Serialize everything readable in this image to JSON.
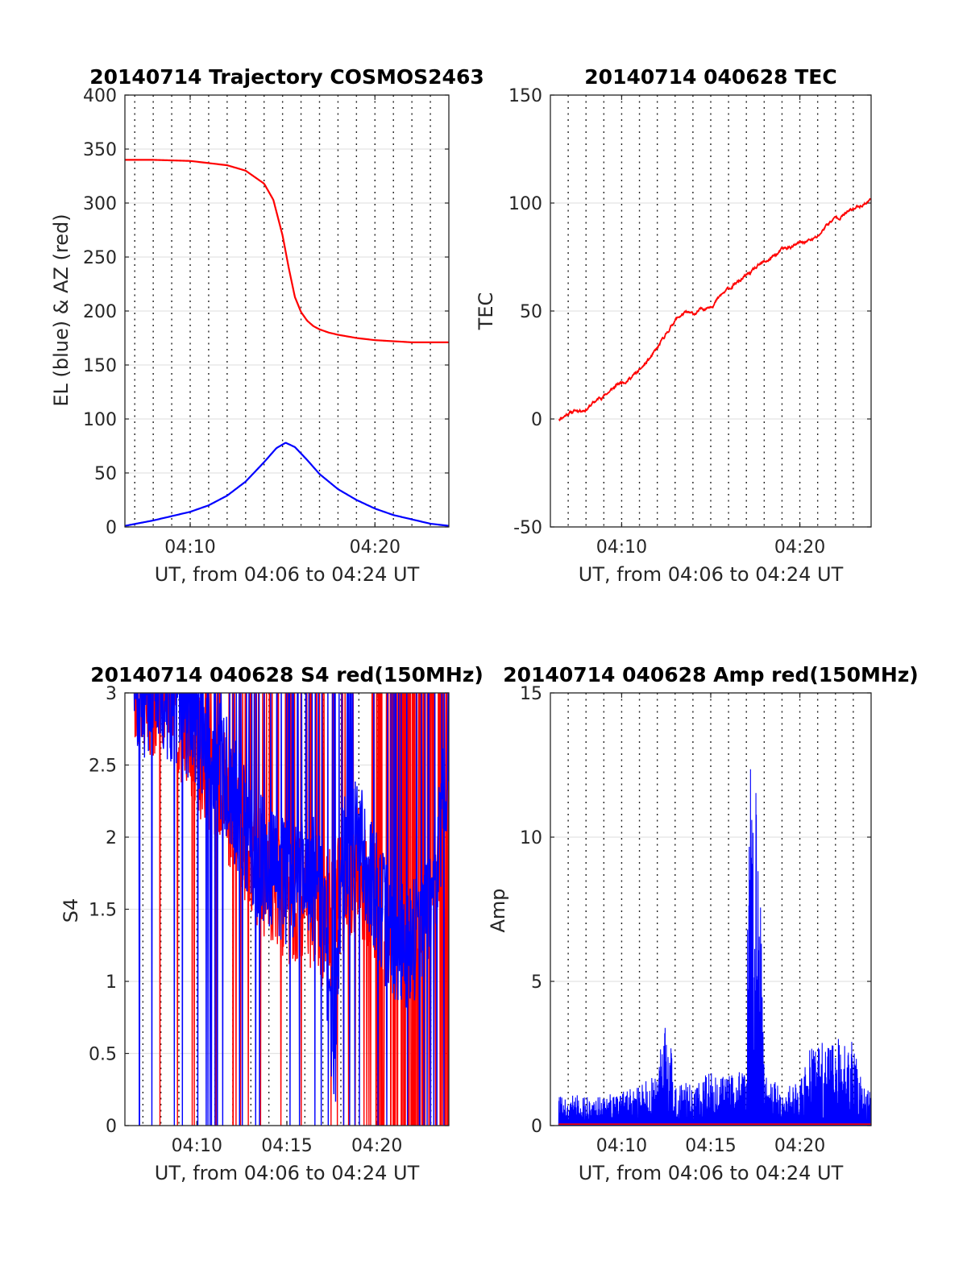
{
  "chart_data": [
    {
      "type": "line",
      "title": "20140714 Trajectory COSMOS2463",
      "xlabel": "UT, from 04:06 to 04:24 UT",
      "ylabel": "EL (blue) & AZ (red)",
      "xlim": [
        "04:06:28",
        "04:24:00"
      ],
      "ylim": [
        0,
        400
      ],
      "xticks": [
        "04:10",
        "04:20"
      ],
      "yticks": [
        "0",
        "50",
        "100",
        "150",
        "200",
        "250",
        "300",
        "350",
        "400"
      ],
      "grid": true,
      "series": [
        {
          "color": "#ff0000",
          "x": [
            "04:06:28",
            "04:08:00",
            "04:10:00",
            "04:12:00",
            "04:13:00",
            "04:14:00",
            "04:14:30",
            "04:15:00",
            "04:15:20",
            "04:15:40",
            "04:16:00",
            "04:16:20",
            "04:16:40",
            "04:17:00",
            "04:17:30",
            "04:18:00",
            "04:19:00",
            "04:20:00",
            "04:21:00",
            "04:22:00",
            "04:23:00",
            "04:24:00"
          ],
          "y": [
            340,
            340,
            339,
            335,
            330,
            318,
            303,
            270,
            240,
            213,
            199,
            191,
            186,
            183,
            180,
            178,
            175,
            173,
            172,
            171,
            171,
            171
          ]
        },
        {
          "color": "#0000ff",
          "x": [
            "04:06:28",
            "04:08:00",
            "04:10:00",
            "04:11:00",
            "04:12:00",
            "04:13:00",
            "04:14:00",
            "04:14:40",
            "04:15:10",
            "04:15:40",
            "04:16:20",
            "04:17:00",
            "04:18:00",
            "04:19:00",
            "04:20:00",
            "04:21:00",
            "04:22:00",
            "04:23:00",
            "04:24:00"
          ],
          "y": [
            1,
            6,
            14,
            20,
            29,
            42,
            60,
            73,
            78,
            74,
            62,
            49,
            35,
            25,
            17,
            11,
            7,
            3,
            1
          ]
        }
      ]
    },
    {
      "type": "line",
      "title": "20140714 040628 TEC",
      "xlabel": "UT, from 04:06 to 04:24 UT",
      "ylabel": "TEC",
      "xlim": [
        "04:06:00",
        "04:24:00"
      ],
      "ylim": [
        -50,
        150
      ],
      "xticks": [
        "04:10",
        "04:20"
      ],
      "yticks": [
        "-50",
        "0",
        "50",
        "100",
        "150"
      ],
      "grid": true,
      "series": [
        {
          "color": "#ff0000",
          "x": [
            "04:06:28",
            "04:07:00",
            "04:08:00",
            "04:09:00",
            "04:10:00",
            "04:11:00",
            "04:12:00",
            "04:12:30",
            "04:13:00",
            "04:13:30",
            "04:14:00",
            "04:15:00",
            "04:16:00",
            "04:17:00",
            "04:18:00",
            "04:19:00",
            "04:20:00",
            "04:21:00",
            "04:21:30",
            "04:22:00",
            "04:23:00",
            "04:24:00"
          ],
          "y": [
            0,
            3,
            5,
            11,
            17,
            22,
            32,
            39,
            46,
            49,
            48,
            53,
            60,
            66,
            72,
            78,
            81,
            84,
            90,
            93,
            97,
            102
          ]
        }
      ]
    },
    {
      "type": "line",
      "title": "20140714 040628 S4 red(150MHz)",
      "xlabel": "UT, from 04:06 to 04:24 UT",
      "ylabel": "S4",
      "xlim": [
        "04:06:00",
        "04:24:00"
      ],
      "ylim": [
        0,
        3
      ],
      "xticks": [
        "04:10",
        "04:15",
        "04:20"
      ],
      "yticks": [
        "0",
        "0.5",
        "1",
        "1.5",
        "2",
        "2.5",
        "3"
      ],
      "grid": true,
      "series": [
        {
          "color": "#ff0000",
          "x": [
            "04:06:28",
            "04:08:00",
            "04:10:00",
            "04:12:00",
            "04:13:00",
            "04:14:00",
            "04:15:00",
            "04:16:00",
            "04:17:00",
            "04:18:00",
            "04:19:00",
            "04:20:00",
            "04:21:00",
            "04:22:00",
            "04:23:00",
            "04:24:00"
          ],
          "y": [
            3,
            3,
            2.6,
            2.2,
            1.9,
            1.7,
            1.5,
            1.6,
            1.4,
            1.6,
            1.8,
            1.5,
            1.2,
            1.3,
            1.5,
            1.9
          ]
        },
        {
          "color": "#0000ff",
          "x": [
            "04:06:28",
            "04:08:00",
            "04:10:00",
            "04:12:00",
            "04:13:00",
            "04:14:00",
            "04:15:00",
            "04:16:00",
            "04:17:00",
            "04:17:40",
            "04:18:00",
            "04:19:00",
            "04:20:00",
            "04:21:00",
            "04:22:00",
            "04:23:00",
            "04:24:00"
          ],
          "y": [
            3,
            3,
            2.8,
            2.3,
            1.9,
            1.8,
            1.7,
            1.8,
            1.6,
            0.4,
            1.8,
            2.0,
            1.6,
            1.2,
            1.3,
            1.5,
            2.5
          ]
        }
      ]
    },
    {
      "type": "line",
      "title": "20140714 040628 Amp red(150MHz)",
      "xlabel": "UT, from 04:06 to 04:24 UT",
      "ylabel": "Amp",
      "xlim": [
        "04:06:00",
        "04:24:00"
      ],
      "ylim": [
        0,
        15
      ],
      "xticks": [
        "04:10",
        "04:15",
        "04:20"
      ],
      "yticks": [
        "0",
        "5",
        "10",
        "15"
      ],
      "grid": true,
      "series": [
        {
          "color": "#0000ff",
          "x": [
            "04:06:28",
            "04:08:00",
            "04:10:00",
            "04:11:00",
            "04:12:00",
            "04:12:30",
            "04:13:00",
            "04:14:00",
            "04:15:00",
            "04:16:00",
            "04:17:00",
            "04:17:10",
            "04:17:20",
            "04:17:40",
            "04:18:00",
            "04:19:00",
            "04:20:00",
            "04:20:30",
            "04:21:00",
            "04:22:00",
            "04:23:00",
            "04:23:30",
            "04:24:00"
          ],
          "y": [
            1.0,
            0.9,
            1.0,
            1.3,
            1.5,
            3.8,
            1.2,
            1.4,
            1.6,
            1.5,
            1.7,
            12.2,
            10.9,
            9.9,
            1.5,
            1.2,
            1.3,
            2.3,
            2.5,
            2.6,
            2.7,
            1.2,
            1.0
          ]
        },
        {
          "color": "#ff0000",
          "x": [
            "04:06:28",
            "04:24:00"
          ],
          "y": [
            0.05,
            0.05
          ]
        }
      ]
    }
  ]
}
